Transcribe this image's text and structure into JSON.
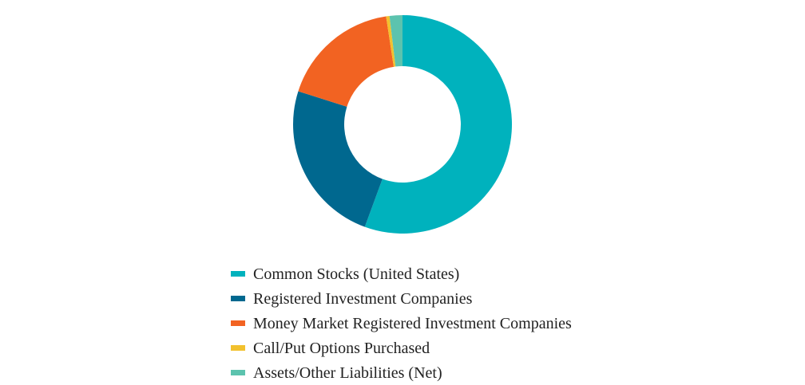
{
  "chart_data": {
    "type": "pie",
    "variant": "donut",
    "title": "",
    "legend_position": "bottom",
    "series": [
      {
        "name": "",
        "slices": [
          {
            "label": "Common Stocks (United States)",
            "value": 55.6,
            "color": "#00B2BD"
          },
          {
            "label": "Registered Investment Companies",
            "value": 24.3,
            "color": "#00688F"
          },
          {
            "label": "Money Market Registered Investment Companies",
            "value": 17.7,
            "color": "#F26322"
          },
          {
            "label": "Call/Put Options Purchased",
            "value": 0.5,
            "color": "#F2C12E"
          },
          {
            "label": "Assets/Other Liabilities (Net)",
            "value": 1.9,
            "color": "#5CC3AE"
          }
        ]
      }
    ]
  }
}
